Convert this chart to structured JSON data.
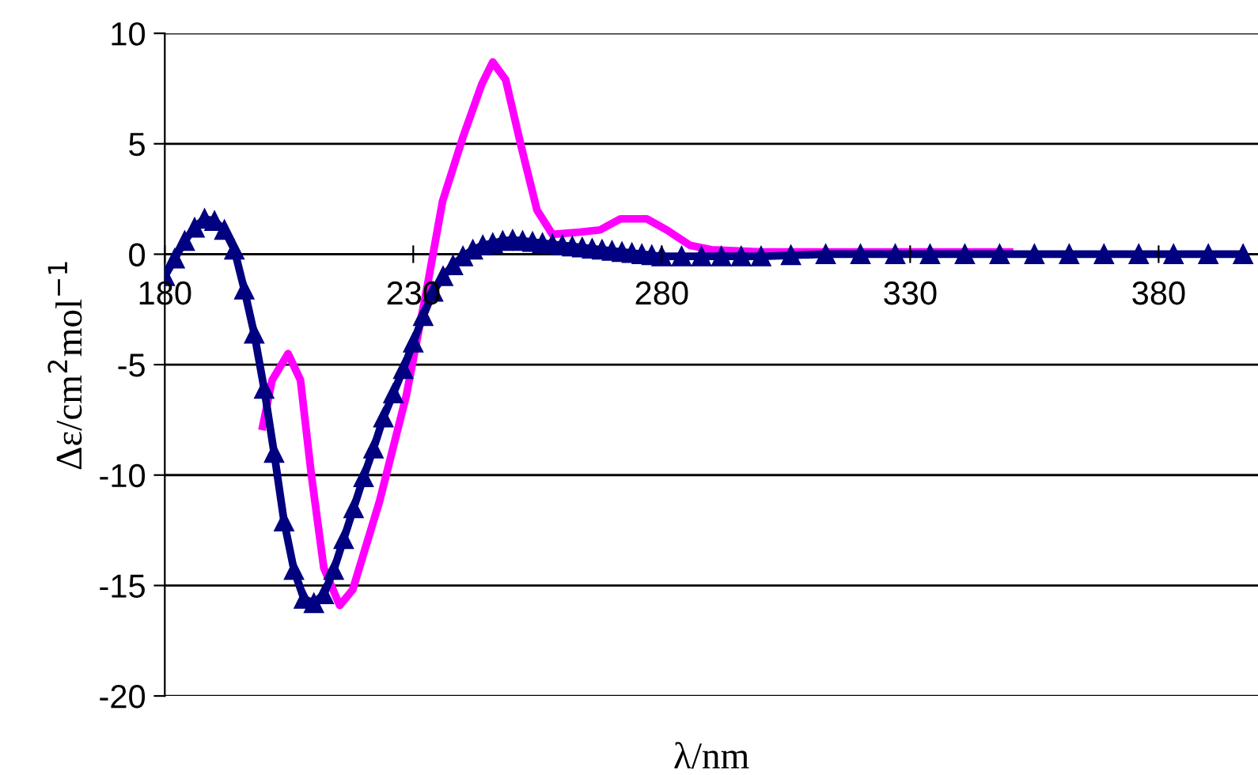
{
  "chart_data": {
    "type": "line",
    "xlabel": "λ/nm",
    "ylabel": "Δε/cm$^{2}$mol$^{−1}$",
    "xlim": [
      180,
      400
    ],
    "xticks": [
      180,
      230,
      280,
      330,
      380
    ],
    "ylim": [
      -20,
      10
    ],
    "yticks": [
      -20,
      -15,
      -10,
      -5,
      0,
      5,
      10
    ],
    "grid": "y",
    "legend": false,
    "line_style": "solid",
    "series": [
      {
        "color": "#ff00ff",
        "marker": "none",
        "x": [
          199.7,
          201.6,
          204.8,
          207.3,
          209.5,
          212,
          215.2,
          217.8,
          223.2,
          228.6,
          232.7,
          235.9,
          240,
          243.8,
          246,
          248.6,
          251.7,
          254.9,
          258,
          263.5,
          267.6,
          271.7,
          277,
          281,
          285.7,
          290,
          300,
          320,
          340,
          350
        ],
        "values": [
          -7.8,
          -5.7,
          -4.5,
          -5.7,
          -10,
          -14.2,
          -15.9,
          -15.2,
          -11.2,
          -6.4,
          -1.6,
          2.4,
          5.3,
          7.7,
          8.7,
          7.9,
          4.9,
          2.0,
          0.9,
          1.0,
          1.1,
          1.6,
          1.6,
          1.1,
          0.4,
          0.2,
          0.1,
          0.1,
          0.1,
          0.1
        ]
      },
      {
        "color": "#000080",
        "marker": "triangle",
        "x": [
          180,
          182,
          184,
          186,
          188,
          190,
          192,
          194,
          196,
          198,
          200,
          202,
          204,
          206,
          208,
          210,
          212,
          214,
          216,
          218,
          220,
          222,
          224,
          226,
          228,
          230,
          232,
          234,
          236,
          238,
          240,
          242,
          244,
          246,
          248,
          250,
          252,
          254,
          256,
          258,
          260,
          262,
          264,
          266,
          268,
          270,
          272,
          274,
          276,
          278,
          280,
          284,
          288,
          292,
          296,
          300,
          306,
          313,
          320,
          327,
          334,
          341,
          348,
          355,
          362,
          369,
          376,
          383,
          390,
          397
        ],
        "values": [
          -1.0,
          -0.2,
          0.6,
          1.2,
          1.6,
          1.5,
          1.1,
          0.2,
          -1.6,
          -3.6,
          -6.1,
          -9.0,
          -12.1,
          -14.3,
          -15.6,
          -15.8,
          -15.4,
          -14.3,
          -12.9,
          -11.5,
          -10.1,
          -8.8,
          -7.4,
          -6.3,
          -5.2,
          -4.0,
          -2.8,
          -1.7,
          -1.0,
          -0.5,
          -0.1,
          0.2,
          0.4,
          0.5,
          0.6,
          0.65,
          0.6,
          0.55,
          0.5,
          0.45,
          0.4,
          0.35,
          0.3,
          0.25,
          0.2,
          0.15,
          0.1,
          0.05,
          0,
          -0.05,
          -0.1,
          -0.1,
          -0.1,
          -0.1,
          -0.1,
          -0.1,
          -0.05,
          0,
          0,
          0,
          0,
          0,
          0,
          0,
          0,
          0,
          0,
          0,
          0,
          0
        ]
      }
    ]
  }
}
